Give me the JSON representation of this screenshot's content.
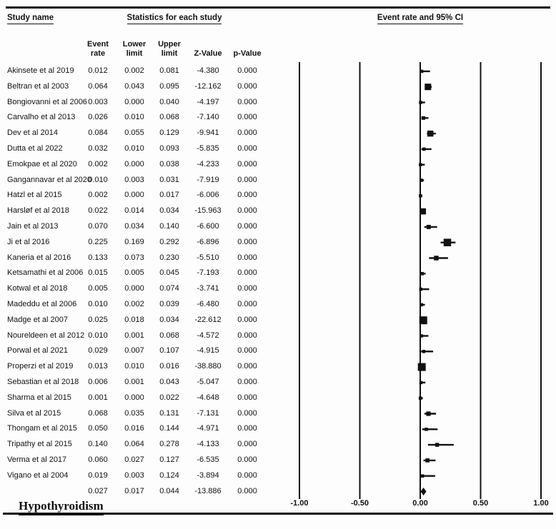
{
  "header": {
    "study_name": "Study name",
    "stats_title": "Statistics for each study",
    "ci_title": "Event rate and 95% CI"
  },
  "columns": [
    {
      "l1": "Event",
      "l2": "rate"
    },
    {
      "l1": "Lower",
      "l2": "limit"
    },
    {
      "l1": "Upper",
      "l2": "limit"
    },
    {
      "l1": "Z-Value",
      "l2": ""
    },
    {
      "l1": "p-Value",
      "l2": ""
    }
  ],
  "footer_label": "Hypothyroidism",
  "chart_data": {
    "type": "forest",
    "title": "Event rate and 95% CI",
    "xlim": [
      -1,
      1
    ],
    "ticks": [
      {
        "label": "-1.00",
        "v": -1
      },
      {
        "label": "-0.50",
        "v": -0.5
      },
      {
        "label": "0.00",
        "v": 0
      },
      {
        "label": "0.50",
        "v": 0.5
      },
      {
        "label": "1.00",
        "v": 1
      }
    ],
    "studies": [
      {
        "name": "Akinsete et al 2019",
        "event_rate": "0.012",
        "lower": "0.002",
        "upper": "0.081",
        "z": "-4.380",
        "p": "0.000"
      },
      {
        "name": "Beltran et al 2003",
        "event_rate": "0.064",
        "lower": "0.043",
        "upper": "0.095",
        "z": "-12.162",
        "p": "0.000"
      },
      {
        "name": "Bongiovanni et al 2006",
        "event_rate": "0.003",
        "lower": "0.000",
        "upper": "0.040",
        "z": "-4.197",
        "p": "0.000"
      },
      {
        "name": "Carvalho et al 2013",
        "event_rate": "0.026",
        "lower": "0.010",
        "upper": "0.068",
        "z": "-7.140",
        "p": "0.000"
      },
      {
        "name": "Dev et al 2014",
        "event_rate": "0.084",
        "lower": "0.055",
        "upper": "0.129",
        "z": "-9.941",
        "p": "0.000"
      },
      {
        "name": "Dutta et al 2022",
        "event_rate": "0.032",
        "lower": "0.010",
        "upper": "0.093",
        "z": "-5.835",
        "p": "0.000"
      },
      {
        "name": "Emokpae et al 2020",
        "event_rate": "0.002",
        "lower": "0.000",
        "upper": "0.038",
        "z": "-4.233",
        "p": "0.000"
      },
      {
        "name": "Gangannavar et al 2020",
        "event_rate": "0.010",
        "lower": "0.003",
        "upper": "0.031",
        "z": "-7.919",
        "p": "0.000"
      },
      {
        "name": "Hatzl et al 2015",
        "event_rate": "0.002",
        "lower": "0.000",
        "upper": "0.017",
        "z": "-6.006",
        "p": "0.000"
      },
      {
        "name": "Harsløf et al 2018",
        "event_rate": "0.022",
        "lower": "0.014",
        "upper": "0.034",
        "z": "-15.963",
        "p": "0.000"
      },
      {
        "name": "Jain et al 2013",
        "event_rate": "0.070",
        "lower": "0.034",
        "upper": "0.140",
        "z": "-6.600",
        "p": "0.000"
      },
      {
        "name": "Ji et al 2016",
        "event_rate": "0.225",
        "lower": "0.169",
        "upper": "0.292",
        "z": "-6.896",
        "p": "0.000"
      },
      {
        "name": "Kaneria et al 2016",
        "event_rate": "0.133",
        "lower": "0.073",
        "upper": "0.230",
        "z": "-5.510",
        "p": "0.000"
      },
      {
        "name": "Ketsamathi et al 2006",
        "event_rate": "0.015",
        "lower": "0.005",
        "upper": "0.045",
        "z": "-7.193",
        "p": "0.000"
      },
      {
        "name": "Kotwal et al 2018",
        "event_rate": "0.005",
        "lower": "0.000",
        "upper": "0.074",
        "z": "-3.741",
        "p": "0.000"
      },
      {
        "name": "Madeddu et al 2006",
        "event_rate": "0.010",
        "lower": "0.002",
        "upper": "0.039",
        "z": "-6.480",
        "p": "0.000"
      },
      {
        "name": "Madge et al 2007",
        "event_rate": "0.025",
        "lower": "0.018",
        "upper": "0.034",
        "z": "-22.612",
        "p": "0.000"
      },
      {
        "name": "Noureldeen et al 2012",
        "event_rate": "0.010",
        "lower": "0.001",
        "upper": "0.068",
        "z": "-4.572",
        "p": "0.000"
      },
      {
        "name": "Porwal et al 2021",
        "event_rate": "0.029",
        "lower": "0.007",
        "upper": "0.107",
        "z": "-4.915",
        "p": "0.000"
      },
      {
        "name": "Properzi et al 2019",
        "event_rate": "0.013",
        "lower": "0.010",
        "upper": "0.016",
        "z": "-38.880",
        "p": "0.000"
      },
      {
        "name": "Sebastian et al 2018",
        "event_rate": "0.006",
        "lower": "0.001",
        "upper": "0.043",
        "z": "-5.047",
        "p": "0.000"
      },
      {
        "name": "Sharma et al 2015",
        "event_rate": "0.001",
        "lower": "0.000",
        "upper": "0.022",
        "z": "-4.648",
        "p": "0.000"
      },
      {
        "name": "Silva et al 2015",
        "event_rate": "0.068",
        "lower": "0.035",
        "upper": "0.131",
        "z": "-7.131",
        "p": "0.000"
      },
      {
        "name": "Thongam et al 2015",
        "event_rate": "0.050",
        "lower": "0.016",
        "upper": "0.144",
        "z": "-4.971",
        "p": "0.000"
      },
      {
        "name": "Tripathy et al 2015",
        "event_rate": "0.140",
        "lower": "0.064",
        "upper": "0.278",
        "z": "-4.133",
        "p": "0.000"
      },
      {
        "name": "Verma et al 2017",
        "event_rate": "0.060",
        "lower": "0.027",
        "upper": "0.127",
        "z": "-6.535",
        "p": "0.000"
      },
      {
        "name": "Vigano et al 2004",
        "event_rate": "0.019",
        "lower": "0.003",
        "upper": "0.124",
        "z": "-3.894",
        "p": "0.000"
      }
    ],
    "overall": {
      "name": "",
      "event_rate": "0.027",
      "lower": "0.017",
      "upper": "0.044",
      "z": "-13.886",
      "p": "0.000"
    }
  }
}
